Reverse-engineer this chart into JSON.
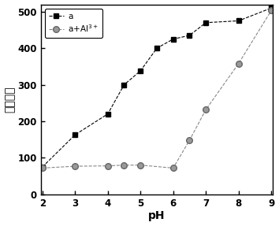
{
  "series_a_x": [
    2,
    3,
    4,
    4.5,
    5,
    5.5,
    6,
    6.5,
    7,
    8,
    9
  ],
  "series_a_y": [
    75,
    163,
    220,
    300,
    338,
    400,
    425,
    435,
    470,
    475,
    510
  ],
  "series_b_x": [
    2,
    3,
    4,
    4.5,
    5,
    6,
    6.5,
    7,
    8,
    9
  ],
  "series_b_y": [
    72,
    77,
    78,
    80,
    80,
    72,
    148,
    232,
    358,
    503
  ],
  "xlabel": "pH",
  "ylabel": "荧光强度",
  "legend_a": "a",
  "legend_b_latex": "a+Al$^{3+}$",
  "xlim": [
    2,
    9
  ],
  "ylim": [
    0,
    520
  ],
  "yticks": [
    0,
    100,
    200,
    300,
    400,
    500
  ],
  "xticks": [
    2,
    3,
    4,
    5,
    6,
    7,
    8,
    9
  ],
  "marker_square": "s",
  "marker_circle": "o",
  "figsize": [
    3.54,
    2.87
  ],
  "dpi": 100
}
